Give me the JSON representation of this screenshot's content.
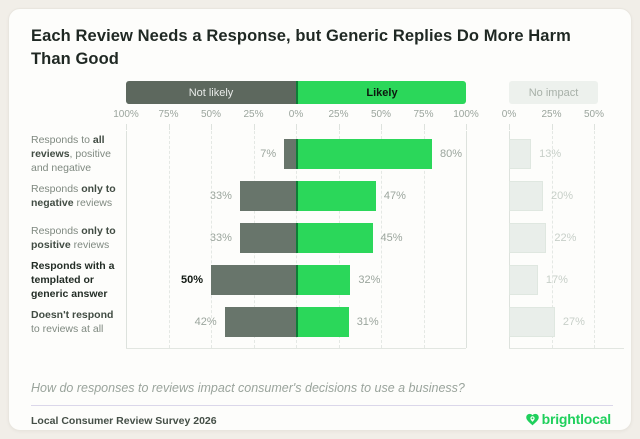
{
  "title": "Each Review Needs a Response, but Generic Replies Do More Harm\nThan Good",
  "legend": {
    "not_likely": "Not likely",
    "likely": "Likely",
    "no_impact": "No impact"
  },
  "footer": {
    "question": "How do responses to reviews impact consumer's decisions to use a business?",
    "source": "Local Consumer Review Survey 2026",
    "brand": "brightlocal"
  },
  "colors": {
    "not_likely_bar": "#68756b",
    "not_likely_header": "#5d685e",
    "likely_green": "#2bd75a",
    "likely_divider": "#0e7d36",
    "no_impact_bar": "#e9eeea",
    "brand_green": "#1fd05c",
    "page_background": "#f1eee8",
    "card_background": "#fdfdfb"
  },
  "chart_data": {
    "type": "bar",
    "orientation": "horizontal-diverging",
    "title": "Each Review Needs a Response, but Generic Replies Do More Harm Than Good",
    "subtitle_question": "How do responses to reviews impact consumer's decisions to use a business?",
    "legend_position": "top",
    "grid": "dashed-vertical",
    "categories": [
      "Responds to all reviews, positive and negative",
      "Responds only to negative reviews",
      "Responds only to positive reviews",
      "Responds with a templated or generic answer",
      "Doesn't respond to reviews at all"
    ],
    "series": [
      {
        "name": "Not likely",
        "values": [
          7,
          33,
          33,
          50,
          42
        ],
        "color": "#68756b"
      },
      {
        "name": "Likely",
        "values": [
          80,
          47,
          45,
          32,
          31
        ],
        "color": "#2bd75a"
      },
      {
        "name": "No impact",
        "values": [
          13,
          20,
          22,
          17,
          27
        ],
        "color": "#e9eeea"
      }
    ],
    "main_axis": {
      "ticks": [
        "100%",
        "75%",
        "50%",
        "25%",
        "0%",
        "25%",
        "50%",
        "75%",
        "100%"
      ],
      "left_range": [
        100,
        0
      ],
      "right_range": [
        0,
        100
      ],
      "step": 25
    },
    "no_impact_axis": {
      "ticks": [
        "0%",
        "25%",
        "50%"
      ],
      "range": [
        0,
        50
      ],
      "step": 25
    },
    "emphasized_row_index": 3,
    "rows": [
      {
        "segments": [
          {
            "t": "Responds to ",
            "b": false
          },
          {
            "t": "all reviews",
            "b": true
          },
          {
            "t": ", positive and negative",
            "b": false
          }
        ],
        "emph": false
      },
      {
        "segments": [
          {
            "t": "Responds ",
            "b": false
          },
          {
            "t": "only to negative",
            "b": true
          },
          {
            "t": " reviews",
            "b": false
          }
        ],
        "emph": false
      },
      {
        "segments": [
          {
            "t": "Responds ",
            "b": false
          },
          {
            "t": "only to positive",
            "b": true
          },
          {
            "t": " reviews",
            "b": false
          }
        ],
        "emph": false
      },
      {
        "segments": [
          {
            "t": "Responds with a templated or generic answer",
            "b": true
          }
        ],
        "emph": true
      },
      {
        "segments": [
          {
            "t": "Doesn't respond",
            "b": true
          },
          {
            "t": " to reviews at all",
            "b": false
          }
        ],
        "emph": false
      }
    ]
  }
}
